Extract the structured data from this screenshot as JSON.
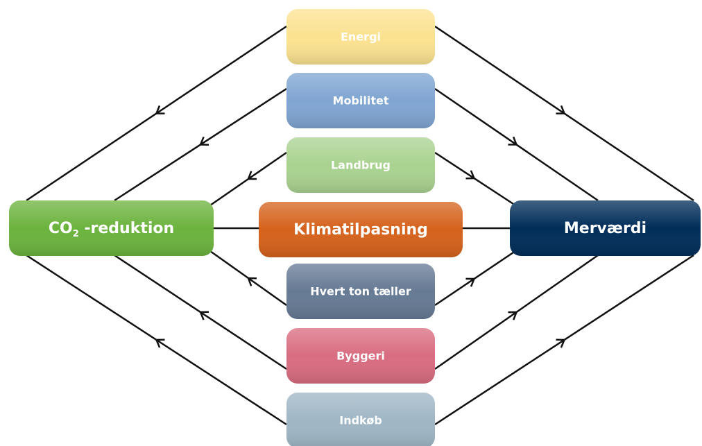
{
  "nodes": [
    {
      "label": "Energi",
      "color": "#fbe290"
    },
    {
      "label": "Mobilitet",
      "color": "#7fa5d2"
    },
    {
      "label": "Landbrug",
      "color": "#a9d290"
    },
    {
      "label": "Hvert ton tæller",
      "color": "#667a94"
    },
    {
      "label": "Byggeri",
      "color": "#d96c80"
    },
    {
      "label": "Indkøb",
      "color": "#9fb6c5"
    }
  ],
  "center": {
    "label": "Klimatilpasning",
    "color": "#d5621c"
  },
  "left": {
    "label": "CO",
    "subscript": "2",
    "suffix": " -reduktion",
    "color": "#6cb33e"
  },
  "right": {
    "label": "Merværdi",
    "color": "#002d59"
  }
}
